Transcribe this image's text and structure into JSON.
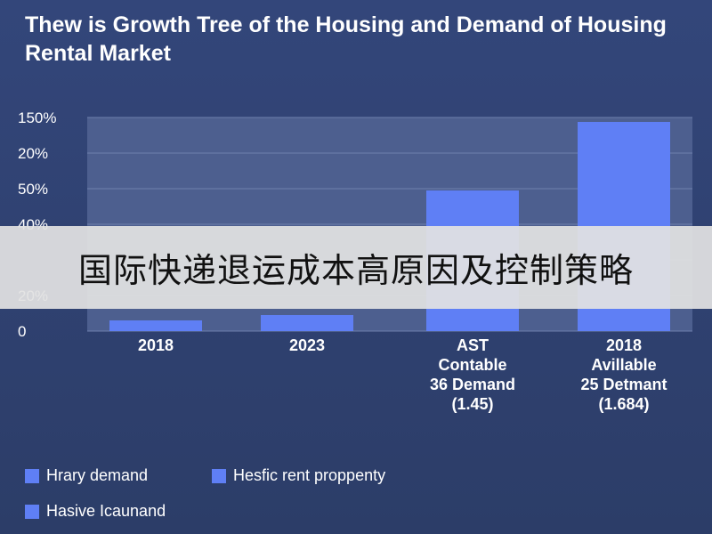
{
  "colors": {
    "bar": "#5f7ff5",
    "plot_bg": "#4d5f8f",
    "grid": "#6f80ad",
    "text": "#ffffff"
  },
  "chart_data": {
    "type": "bar",
    "title": "Thew is Growth Tree of the Housing and Demand of Housing Rental Market",
    "ytick_labels": [
      "0",
      "20%",
      "",
      "40%",
      "50%",
      "20%",
      "150%"
    ],
    "categories": [
      [
        "2018"
      ],
      [
        "2023"
      ],
      [
        "AST",
        "Contable",
        "36 Demand",
        "(1.45)"
      ],
      [
        "2018",
        "Avillable",
        "25 Detmant",
        "(1.684)"
      ]
    ],
    "values": [
      12,
      18,
      158,
      235
    ],
    "ylim": [
      0,
      240
    ],
    "grid": true,
    "legend_position": "bottom-left",
    "legend": [
      "Hrary demand",
      "Hesfic rent proppenty",
      "Hasive Icaunand"
    ]
  },
  "banner": {
    "text": "国际快递退运成本高原因及控制策略"
  }
}
